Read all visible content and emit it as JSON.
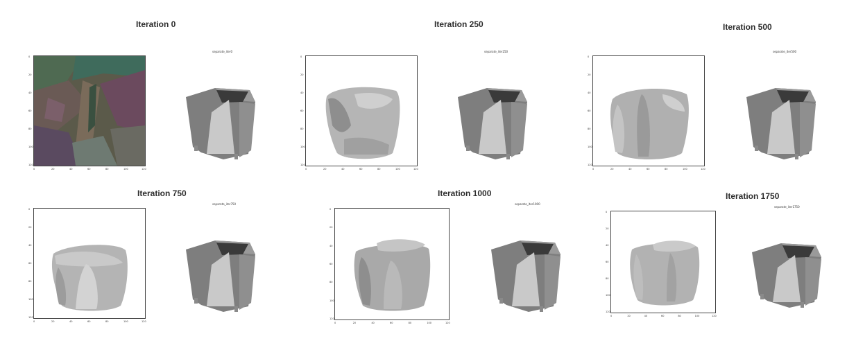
{
  "groups": [
    {
      "title": "Iteration 0",
      "caption": "separate_iter0"
    },
    {
      "title": "Iteration 250",
      "caption": "separate_iter250"
    },
    {
      "title": "Iteration 500",
      "caption": "separate_iter500"
    },
    {
      "title": "Iteration 750",
      "caption": "separate_iter750"
    },
    {
      "title": "Iteration 1000",
      "caption": "separate_iter1000"
    },
    {
      "title": "Iteration 1750",
      "caption": "separate_iter1750"
    }
  ],
  "y_ticks": [
    "0",
    "20",
    "40",
    "60",
    "80",
    "100",
    "120"
  ],
  "x_ticks": [
    "0",
    "20",
    "40",
    "60",
    "80",
    "100",
    "120"
  ],
  "colors": {
    "title": "#2d2d2d",
    "mesh_dark": "#7a7a7a",
    "mesh_light": "#c8c8c8"
  }
}
